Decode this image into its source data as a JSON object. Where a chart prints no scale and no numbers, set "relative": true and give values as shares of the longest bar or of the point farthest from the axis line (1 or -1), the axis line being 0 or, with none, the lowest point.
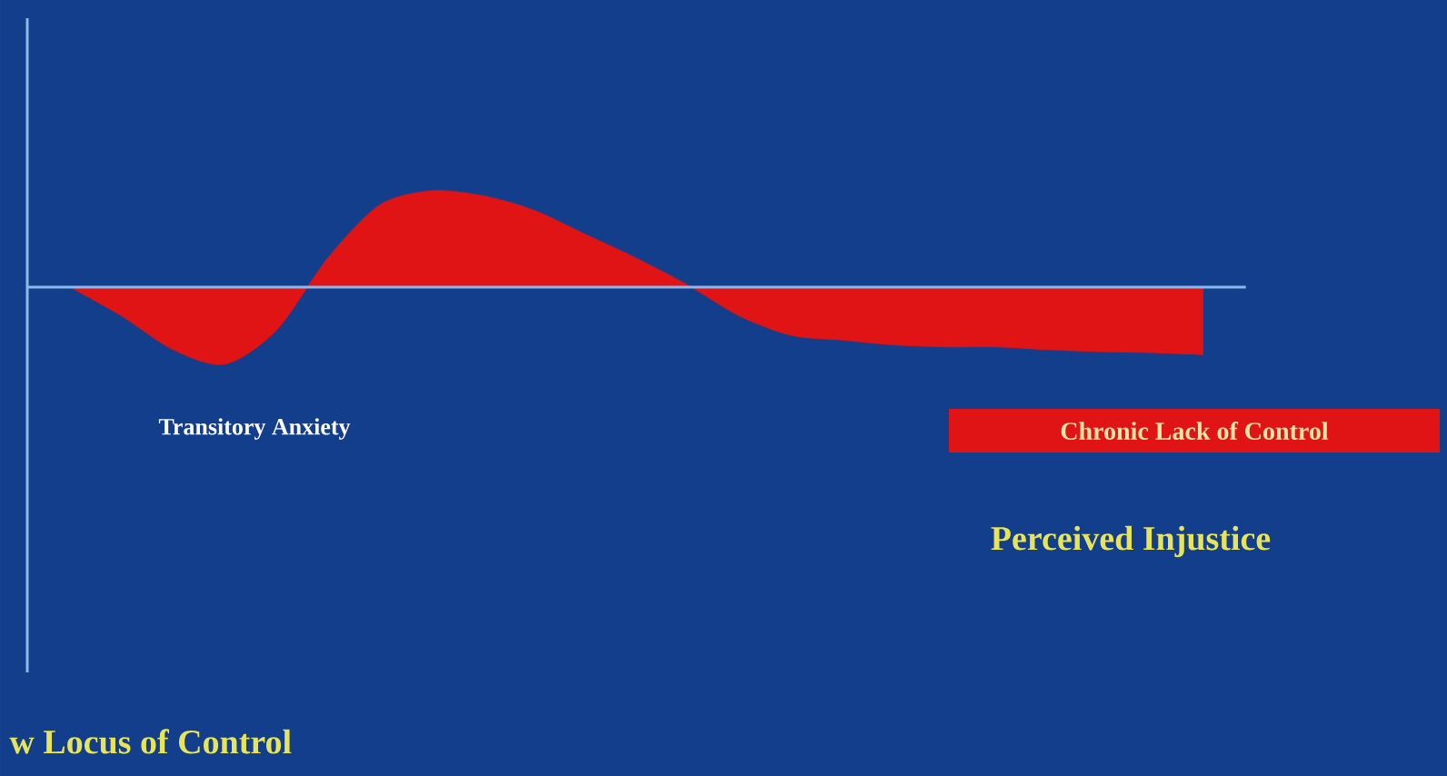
{
  "chart_data": {
    "type": "area",
    "relative": true,
    "color": "#e01414",
    "categories": [
      null,
      null,
      null,
      null,
      null,
      null,
      null,
      null,
      null,
      null,
      null,
      null,
      null,
      null,
      null,
      null,
      null,
      null,
      null,
      null,
      null,
      null,
      null
    ],
    "values": [
      0,
      -0.3,
      -0.65,
      -0.8,
      -0.45,
      0.3,
      0.85,
      1.0,
      0.95,
      0.8,
      0.55,
      0.3,
      0.02,
      -0.3,
      -0.5,
      -0.55,
      -0.6,
      -0.62,
      -0.62,
      -0.65,
      -0.67,
      -0.68,
      -0.7
    ],
    "ref_lines": [
      {
        "axis": "y",
        "value": 0,
        "color": "#8cb8ec"
      }
    ],
    "annotations": [
      "Transitory Anxiety",
      "Chronic Lack of Control",
      "Perceived Injustice",
      "w Locus of Control"
    ]
  }
}
